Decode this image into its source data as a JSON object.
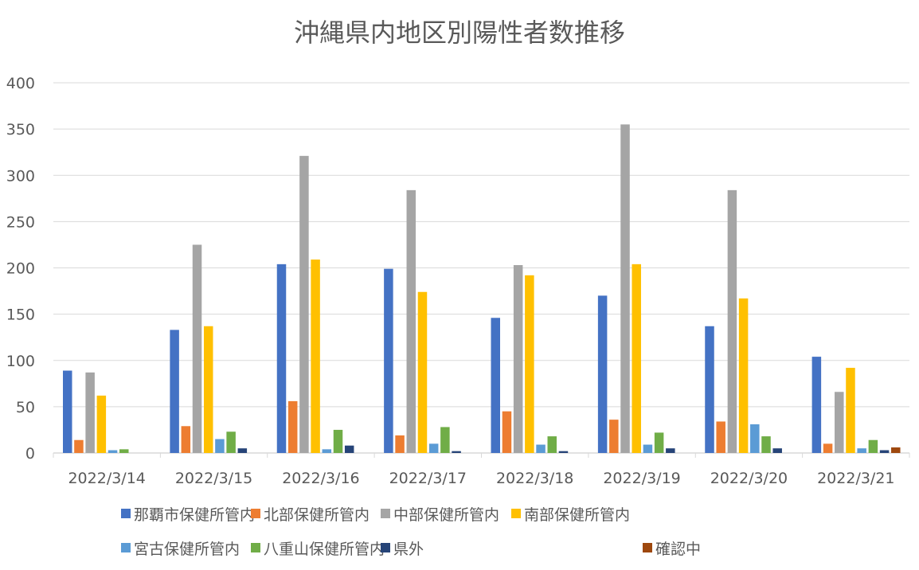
{
  "chart_data": {
    "type": "bar",
    "title": "沖縄県内地区別陽性者数推移",
    "xlabel": "",
    "ylabel": "",
    "ylim": [
      0,
      400
    ],
    "yticks": [
      0,
      50,
      100,
      150,
      200,
      250,
      300,
      350,
      400
    ],
    "grid": true,
    "legend_position": "bottom",
    "categories": [
      "2022/3/14",
      "2022/3/15",
      "2022/3/16",
      "2022/3/17",
      "2022/3/18",
      "2022/3/19",
      "2022/3/20",
      "2022/3/21"
    ],
    "series": [
      {
        "name": "那覇市保健所管内",
        "color": "#4472C4",
        "values": [
          89,
          133,
          204,
          199,
          146,
          170,
          137,
          104
        ]
      },
      {
        "name": "北部保健所管内",
        "color": "#ED7D31",
        "values": [
          14,
          29,
          56,
          19,
          45,
          36,
          34,
          10
        ]
      },
      {
        "name": "中部保健所管内",
        "color": "#A5A5A5",
        "values": [
          87,
          225,
          321,
          284,
          203,
          355,
          284,
          66
        ]
      },
      {
        "name": "南部保健所管内",
        "color": "#FFC000",
        "values": [
          62,
          137,
          209,
          174,
          192,
          204,
          167,
          92
        ]
      },
      {
        "name": "宮古保健所管内",
        "color": "#5B9BD5",
        "values": [
          3,
          15,
          4,
          10,
          9,
          9,
          31,
          5
        ]
      },
      {
        "name": "八重山保健所管内",
        "color": "#70AD47",
        "values": [
          4,
          23,
          25,
          28,
          18,
          22,
          18,
          14
        ]
      },
      {
        "name": "県外",
        "color": "#264478",
        "values": [
          0,
          5,
          8,
          2,
          2,
          5,
          5,
          3
        ]
      },
      {
        "name": "確認中",
        "color": "#9E480E",
        "values": [
          0,
          0,
          0,
          0,
          0,
          0,
          0,
          6
        ]
      }
    ]
  }
}
